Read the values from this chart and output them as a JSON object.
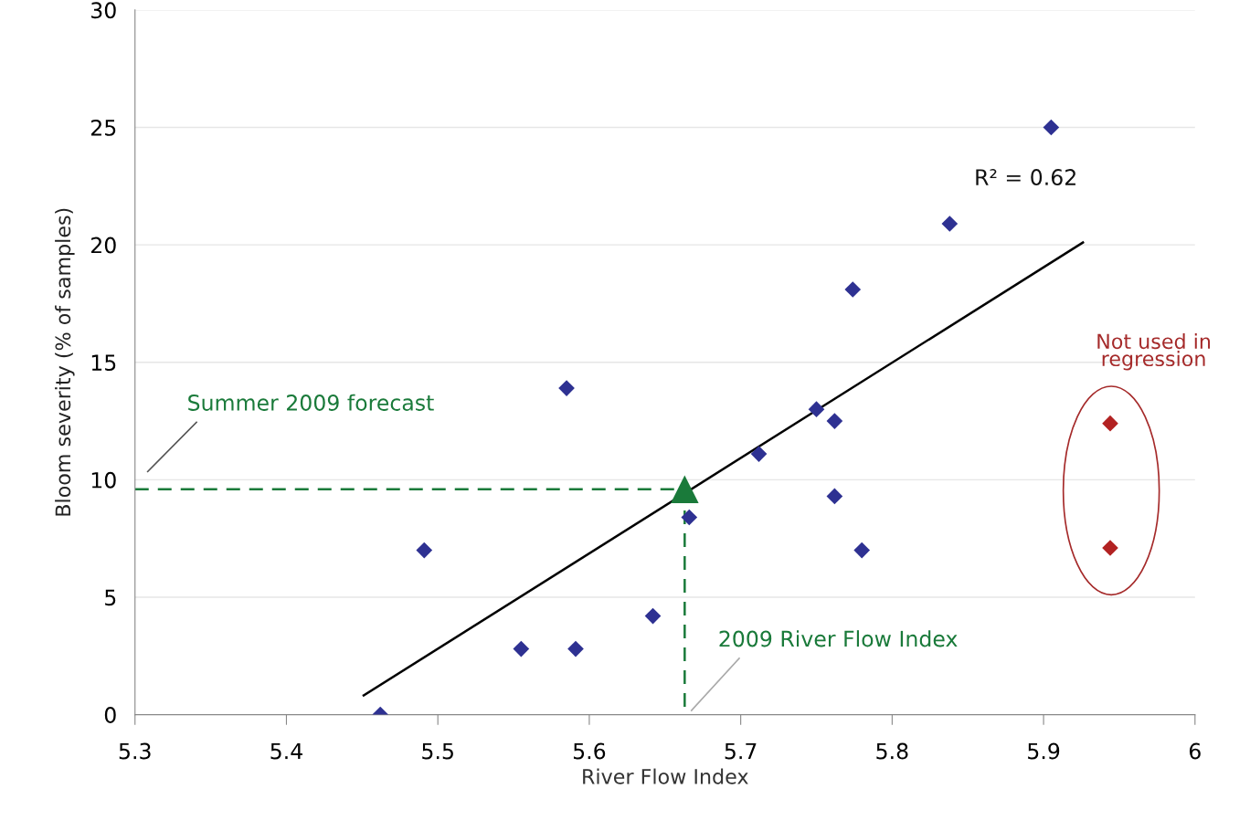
{
  "chart_data": {
    "type": "scatter",
    "xlabel": "River Flow Index",
    "ylabel": "Bloom severity (% of samples)",
    "xlim": [
      5.3,
      6
    ],
    "xticks": [
      5.3,
      5.4,
      5.5,
      5.6,
      5.7,
      5.8,
      5.9,
      6
    ],
    "ylim": [
      0,
      30
    ],
    "yticks": [
      0,
      5,
      10,
      15,
      20,
      25,
      30
    ],
    "grid": "y",
    "series": [
      {
        "type": "line",
        "color": "#000000",
        "x": [
          5.451,
          5.926
        ],
        "values": [
          0.82,
          20.1
        ],
        "marker": "none",
        "line_style": "solid"
      },
      {
        "type": "line",
        "color": "#1a7a3a",
        "x": [
          5.3,
          5.663,
          5.663
        ],
        "values": [
          9.6,
          9.6,
          0
        ],
        "marker": "none",
        "line_style": "dashed"
      },
      {
        "color": "#2e3192",
        "marker": "diamond",
        "x": [
          5.462,
          5.491,
          5.555,
          5.591,
          5.585,
          5.642,
          5.666,
          5.712,
          5.75,
          5.762,
          5.762,
          5.78,
          5.774,
          5.838,
          5.905
        ],
        "values": [
          0,
          7.0,
          2.8,
          2.8,
          13.9,
          4.2,
          8.4,
          11.1,
          13.0,
          12.5,
          9.3,
          7.0,
          18.1,
          20.9,
          25.0
        ]
      },
      {
        "color": "#b22222",
        "marker": "diamond",
        "x": [
          5.944,
          5.944
        ],
        "values": [
          12.4,
          7.1
        ]
      },
      {
        "color": "#1a7a3a",
        "marker": "triangle",
        "x": [
          5.663
        ],
        "values": [
          9.6
        ]
      }
    ],
    "annotations": [
      "Summer 2009 forecast",
      "2009 River Flow Index",
      {
        "text": "R² = 0.62",
        "x": 5.926,
        "y": 20.1
      },
      "Not used in\nregression"
    ]
  }
}
